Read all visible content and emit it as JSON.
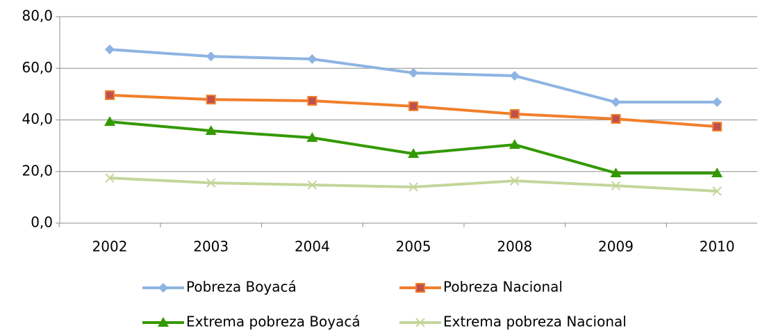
{
  "chart_data": {
    "type": "line",
    "categories": [
      "2002",
      "2003",
      "2004",
      "2005",
      "2008",
      "2009",
      "2010"
    ],
    "series": [
      {
        "name": "Pobreza Boyacá",
        "color": "#8db4e2",
        "marker": "diamond",
        "values": [
          67.3,
          64.6,
          63.6,
          58.2,
          57.1,
          46.9,
          46.9
        ]
      },
      {
        "name": "Pobreza Nacional",
        "color": "#f07f2a",
        "marker": "square",
        "values": [
          49.6,
          47.9,
          47.4,
          45.3,
          42.3,
          40.4,
          37.4
        ]
      },
      {
        "name": "Extrema pobreza Boyacá",
        "color": "#339900",
        "marker": "triangle",
        "values": [
          39.3,
          35.8,
          33.1,
          26.9,
          30.4,
          19.4,
          19.4
        ]
      },
      {
        "name": "Extrema pobreza Nacional",
        "color": "#c3d69b",
        "marker": "x",
        "values": [
          17.5,
          15.6,
          14.8,
          14.0,
          16.4,
          14.5,
          12.4
        ]
      }
    ],
    "ylim": [
      0,
      80
    ],
    "yticks": [
      {
        "value": 0,
        "label": "0,0"
      },
      {
        "value": 20,
        "label": "20,0"
      },
      {
        "value": 40,
        "label": "40,0"
      },
      {
        "value": 60,
        "label": "60,0"
      },
      {
        "value": 80,
        "label": "80,0"
      }
    ],
    "grid": true,
    "legend": "bottom"
  }
}
